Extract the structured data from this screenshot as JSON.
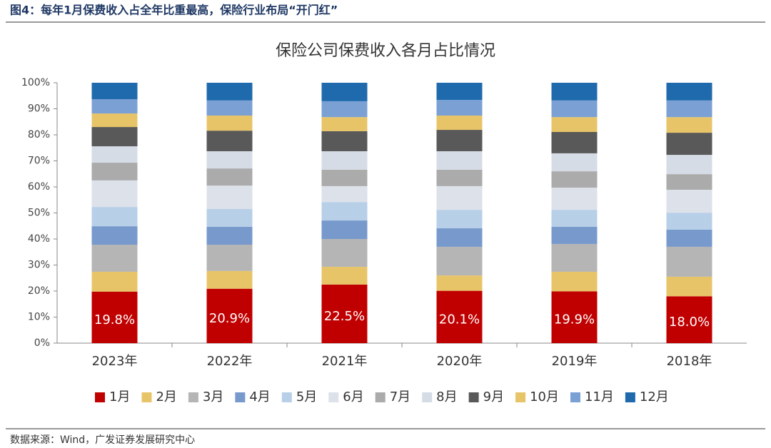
{
  "header": "图4：每年1月保费收入占全年比重最高，保险行业布局“开门红”",
  "source": "数据来源：Wind，广发证券发展研究中心",
  "chart_data": {
    "type": "stacked_bar",
    "title": "保险公司保费收入各月占比情况",
    "categories": [
      "2023年",
      "2022年",
      "2021年",
      "2020年",
      "2019年",
      "2018年"
    ],
    "ylim": [
      0,
      100
    ],
    "yticks": [
      {
        "value": 0,
        "label": "0%"
      },
      {
        "value": 10,
        "label": "10%"
      },
      {
        "value": 20,
        "label": "20%"
      },
      {
        "value": 30,
        "label": "30%"
      },
      {
        "value": 40,
        "label": "40%"
      },
      {
        "value": 50,
        "label": "50%"
      },
      {
        "value": 60,
        "label": "60%"
      },
      {
        "value": 70,
        "label": "70%"
      },
      {
        "value": 80,
        "label": "80%"
      },
      {
        "value": 90,
        "label": "90%"
      },
      {
        "value": 100,
        "label": "100%"
      }
    ],
    "legend": "bottom",
    "series": [
      {
        "name": "1月",
        "color": "#c00000",
        "values": [
          19.8,
          20.9,
          22.5,
          20.1,
          19.9,
          18.0
        ],
        "value_labels": [
          "19.8%",
          "20.9%",
          "22.5%",
          "20.1%",
          "19.9%",
          "18.0%"
        ]
      },
      {
        "name": "2月",
        "color": "#e8c468",
        "values": [
          7.6,
          6.8,
          6.8,
          5.9,
          7.5,
          7.5
        ]
      },
      {
        "name": "3月",
        "color": "#b5b5b5",
        "values": [
          10.4,
          10.1,
          10.7,
          11.0,
          10.7,
          11.5
        ]
      },
      {
        "name": "4月",
        "color": "#7799cc",
        "values": [
          7.1,
          6.9,
          7.1,
          7.1,
          6.6,
          6.6
        ]
      },
      {
        "name": "5月",
        "color": "#b8cfe8",
        "values": [
          7.4,
          6.8,
          7.1,
          7.1,
          6.5,
          6.5
        ]
      },
      {
        "name": "6月",
        "color": "#dce1ea",
        "values": [
          10.2,
          9.0,
          6.1,
          9.1,
          8.5,
          8.8
        ]
      },
      {
        "name": "7月",
        "color": "#ababab",
        "values": [
          6.8,
          6.6,
          6.3,
          6.3,
          6.3,
          6.0
        ]
      },
      {
        "name": "8月",
        "color": "#d6dce6",
        "values": [
          6.3,
          6.6,
          7.1,
          7.1,
          6.9,
          7.4
        ]
      },
      {
        "name": "9月",
        "color": "#595959",
        "values": [
          7.4,
          7.9,
          7.7,
          8.2,
          8.2,
          8.5
        ]
      },
      {
        "name": "10月",
        "color": "#e8c468",
        "values": [
          5.2,
          5.8,
          5.4,
          5.5,
          5.7,
          6.0
        ]
      },
      {
        "name": "11月",
        "color": "#7aa0d4",
        "values": [
          5.5,
          5.8,
          6.1,
          6.0,
          6.4,
          6.4
        ]
      },
      {
        "name": "12月",
        "color": "#1f6aad",
        "values": [
          6.3,
          6.8,
          7.1,
          6.6,
          6.8,
          6.8
        ]
      }
    ]
  }
}
